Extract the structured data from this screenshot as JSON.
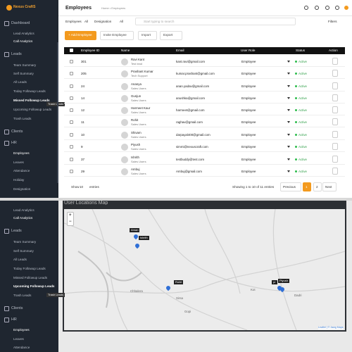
{
  "top": {
    "sidebar": {
      "logo": "Nexus CraftS",
      "items": [
        "Dashboard",
        "Lead Analytics",
        "Call Analytics",
        "Leads",
        "Team Summary",
        "Self Summary",
        "All Leads",
        "Today Followup Leads",
        "Missed Followup Leads",
        "Upcoming Followup Leads",
        "Trash Leads",
        "Clients",
        "HR",
        "Employees",
        "Leaves",
        "Attendance",
        "Holiday",
        "Designation"
      ]
    },
    "tooltip": "Trash Leads",
    "header": {
      "title": "Employees",
      "breadcrumb": "Home • Employees"
    },
    "filters": {
      "employees_label": "Employees",
      "employees_value": "All",
      "designation_label": "Designation",
      "designation_value": "All",
      "search": "Start typing to search",
      "filters": "Filters"
    },
    "buttons": [
      "+ Add Employee",
      "Invite Employee",
      "Import",
      "Export"
    ],
    "table": {
      "columns": [
        "Employee ID",
        "Name",
        "Email",
        "User Role",
        "Status",
        "Action"
      ],
      "rows": [
        {
          "id": "301",
          "name": "Ravi Kant",
          "designation": "Test lead",
          "email": "kant.ravi@gmail.com",
          "role": "Employee",
          "status": "Active"
        },
        {
          "id": "205",
          "name": "Prashant Kumar",
          "designation": "Tech Support",
          "email": "kumar.prashant@gmail.com",
          "role": "Employee",
          "status": "Active"
        },
        {
          "id": "24",
          "name": "Ananya",
          "designation": "Sales Users",
          "email": "anan.yadav@gmail.com",
          "role": "Employee",
          "status": "Active"
        },
        {
          "id": "14",
          "name": "Gunjun",
          "designation": "Sales Users",
          "email": "anushka@gmail.com",
          "role": "Employee",
          "status": "Active"
        },
        {
          "id": "12",
          "name": "Harmeet Kaur",
          "designation": "Sales Users",
          "email": "harmeet@gmail.com",
          "role": "Employee",
          "status": "Active"
        },
        {
          "id": "11",
          "name": "Rohit",
          "designation": "Sales Users",
          "email": "raghav@gmail.com",
          "role": "Employee",
          "status": "Active"
        },
        {
          "id": "10",
          "name": "Shivam",
          "designation": "Sales Users",
          "email": "darpayal400@gmail.com",
          "role": "Employee",
          "status": "Active"
        },
        {
          "id": "9",
          "name": "Piyush",
          "designation": "Sales Users",
          "email": "simmi@nexuscraft.com",
          "role": "Employee",
          "status": "Active"
        },
        {
          "id": "37",
          "name": "Ishrith",
          "designation": "Sales Users",
          "email": "testbuddy@test.com",
          "role": "Employee",
          "status": "Active"
        },
        {
          "id": "29",
          "name": "Ambuj",
          "designation": "Sales Users",
          "email": "Ambuj@gmail.com",
          "role": "Employee",
          "status": "Active"
        }
      ]
    },
    "footer": {
      "show": "Show",
      "entries_count": "10",
      "entries": "entries",
      "info": "Showing 1 to 10 of 11 entries",
      "pages": [
        "Previous",
        "1",
        "2",
        "Next"
      ]
    }
  },
  "bottom": {
    "sidebar": {
      "items": [
        "Lead Analytics",
        "Call Analytics",
        "Leads",
        "Team Summary",
        "Self Summary",
        "All Leads",
        "Today Followup Leads",
        "Missed Followup Leads",
        "Upcoming Followup Leads",
        "Trash Leads",
        "Clients",
        "HR",
        "Employees",
        "Leaves",
        "Attendance"
      ]
    },
    "tooltip": "Trash Leads",
    "map": {
      "title": "User Locations Map",
      "zoom": [
        "+",
        "−"
      ],
      "markers": [
        "Aman",
        "ishrith",
        "Rohit",
        "pr",
        "Piyush"
      ],
      "places": [
        "Chhalera",
        "Sirsa",
        "Kot",
        "Dadri",
        "Gopi"
      ],
      "attribution": "Leaflet | © Jawg Maps"
    }
  }
}
